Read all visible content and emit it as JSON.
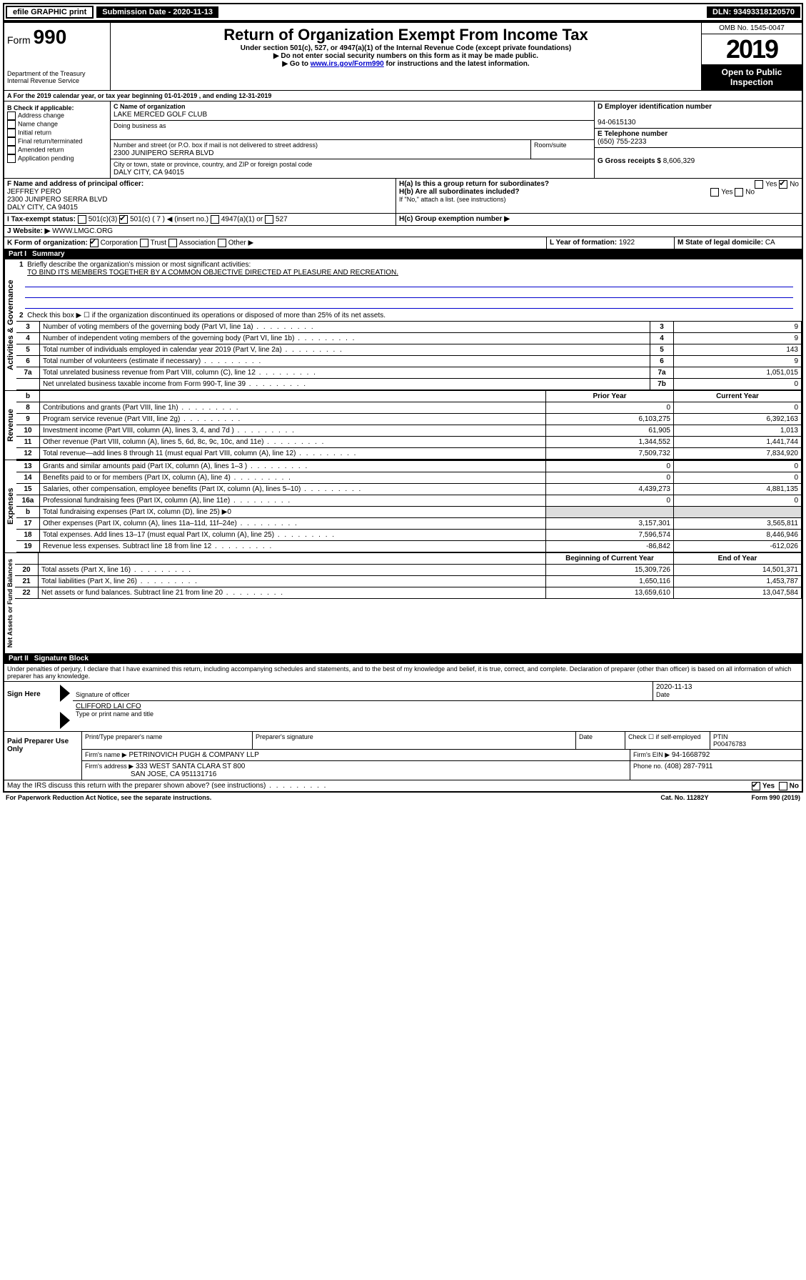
{
  "topbar": {
    "efile": "efile GRAPHIC print",
    "submission_label": "Submission Date - 2020-11-13",
    "dln": "DLN: 93493318120570"
  },
  "header": {
    "form_prefix": "Form",
    "form_number": "990",
    "title": "Return of Organization Exempt From Income Tax",
    "subtitle": "Under section 501(c), 527, or 4947(a)(1) of the Internal Revenue Code (except private foundations)",
    "note1": "▶ Do not enter social security numbers on this form as it may be made public.",
    "note2_pre": "▶ Go to ",
    "note2_link": "www.irs.gov/Form990",
    "note2_post": " for instructions and the latest information.",
    "dept": "Department of the Treasury\nInternal Revenue Service",
    "omb": "OMB No. 1545-0047",
    "year": "2019",
    "inspection": "Open to Public Inspection"
  },
  "line_a": "For the 2019 calendar year, or tax year beginning 01-01-2019    , and ending 12-31-2019",
  "box_b": {
    "title": "B Check if applicable:",
    "items": [
      "Address change",
      "Name change",
      "Initial return",
      "Final return/terminated",
      "Amended return",
      "Application pending"
    ]
  },
  "box_c": {
    "c_label": "C Name of organization",
    "org_name": "LAKE MERCED GOLF CLUB",
    "dba_label": "Doing business as",
    "addr_label": "Number and street (or P.O. box if mail is not delivered to street address)",
    "room_label": "Room/suite",
    "addr": "2300 JUNIPERO SERRA BLVD",
    "city_label": "City or town, state or province, country, and ZIP or foreign postal code",
    "city": "DALY CITY, CA  94015"
  },
  "box_d": {
    "label": "D Employer identification number",
    "value": "94-0615130"
  },
  "box_e": {
    "label": "E Telephone number",
    "value": "(650) 755-2233"
  },
  "box_g": {
    "label": "G Gross receipts $",
    "value": "8,606,329"
  },
  "box_f": {
    "label": "F  Name and address of principal officer:",
    "name": "JEFFREY PERO",
    "addr1": "2300 JUNIPERO SERRA BLVD",
    "addr2": "DALY CITY, CA  94015"
  },
  "box_h": {
    "ha": "H(a)  Is this a group return for subordinates?",
    "hb": "H(b)  Are all subordinates included?",
    "hb_note": "If \"No,\" attach a list. (see instructions)",
    "hc": "H(c)  Group exemption number ▶"
  },
  "box_i": {
    "label": "I  Tax-exempt status:",
    "c3": "501(c)(3)",
    "c_other": "501(c) ( 7 ) ◀ (insert no.)",
    "a1": "4947(a)(1) or",
    "s527": "527"
  },
  "box_j": {
    "label": "J  Website: ▶",
    "value": "WWW.LMGC.ORG"
  },
  "box_k": {
    "label": "K Form of organization:",
    "opts": [
      "Corporation",
      "Trust",
      "Association",
      "Other ▶"
    ]
  },
  "box_l": {
    "label": "L Year of formation:",
    "value": "1922"
  },
  "box_m": {
    "label": "M State of legal domicile:",
    "value": "CA"
  },
  "partI": {
    "num": "Part I",
    "title": "Summary"
  },
  "summary": {
    "line1_label": "Briefly describe the organization's mission or most significant activities:",
    "line1_text": "TO BIND ITS MEMBERS TOGETHER BY A COMMON OBJECTIVE DIRECTED AT PLEASURE AND RECREATION.",
    "line2": "Check this box ▶ ☐  if the organization discontinued its operations or disposed of more than 25% of its net assets.",
    "sections": {
      "gov": "Activities & Governance",
      "rev": "Revenue",
      "exp": "Expenses",
      "net": "Net Assets or Fund Balances"
    },
    "col_headers": {
      "prior": "Prior Year",
      "current": "Current Year",
      "boy": "Beginning of Current Year",
      "eoy": "End of Year"
    },
    "rows_top": [
      {
        "n": "3",
        "d": "Number of voting members of the governing body (Part VI, line 1a)",
        "l": "3",
        "v": "9"
      },
      {
        "n": "4",
        "d": "Number of independent voting members of the governing body (Part VI, line 1b)",
        "l": "4",
        "v": "9"
      },
      {
        "n": "5",
        "d": "Total number of individuals employed in calendar year 2019 (Part V, line 2a)",
        "l": "5",
        "v": "143"
      },
      {
        "n": "6",
        "d": "Total number of volunteers (estimate if necessary)",
        "l": "6",
        "v": "9"
      },
      {
        "n": "7a",
        "d": "Total unrelated business revenue from Part VIII, column (C), line 12",
        "l": "7a",
        "v": "1,051,015"
      },
      {
        "n": "",
        "d": "Net unrelated business taxable income from Form 990-T, line 39",
        "l": "7b",
        "v": "0"
      }
    ],
    "rows_rev": [
      {
        "n": "8",
        "d": "Contributions and grants (Part VIII, line 1h)",
        "p": "0",
        "c": "0"
      },
      {
        "n": "9",
        "d": "Program service revenue (Part VIII, line 2g)",
        "p": "6,103,275",
        "c": "6,392,163"
      },
      {
        "n": "10",
        "d": "Investment income (Part VIII, column (A), lines 3, 4, and 7d )",
        "p": "61,905",
        "c": "1,013"
      },
      {
        "n": "11",
        "d": "Other revenue (Part VIII, column (A), lines 5, 6d, 8c, 9c, 10c, and 11e)",
        "p": "1,344,552",
        "c": "1,441,744"
      },
      {
        "n": "12",
        "d": "Total revenue—add lines 8 through 11 (must equal Part VIII, column (A), line 12)",
        "p": "7,509,732",
        "c": "7,834,920"
      }
    ],
    "rows_exp": [
      {
        "n": "13",
        "d": "Grants and similar amounts paid (Part IX, column (A), lines 1–3 )",
        "p": "0",
        "c": "0"
      },
      {
        "n": "14",
        "d": "Benefits paid to or for members (Part IX, column (A), line 4)",
        "p": "0",
        "c": "0"
      },
      {
        "n": "15",
        "d": "Salaries, other compensation, employee benefits (Part IX, column (A), lines 5–10)",
        "p": "4,439,273",
        "c": "4,881,135"
      },
      {
        "n": "16a",
        "d": "Professional fundraising fees (Part IX, column (A), line 11e)",
        "p": "0",
        "c": "0"
      },
      {
        "n": "b",
        "d": "Total fundraising expenses (Part IX, column (D), line 25) ▶0",
        "p": "",
        "c": "",
        "gray": true
      },
      {
        "n": "17",
        "d": "Other expenses (Part IX, column (A), lines 11a–11d, 11f–24e)",
        "p": "3,157,301",
        "c": "3,565,811"
      },
      {
        "n": "18",
        "d": "Total expenses. Add lines 13–17 (must equal Part IX, column (A), line 25)",
        "p": "7,596,574",
        "c": "8,446,946"
      },
      {
        "n": "19",
        "d": "Revenue less expenses. Subtract line 18 from line 12",
        "p": "-86,842",
        "c": "-612,026"
      }
    ],
    "rows_net": [
      {
        "n": "20",
        "d": "Total assets (Part X, line 16)",
        "p": "15,309,726",
        "c": "14,501,371"
      },
      {
        "n": "21",
        "d": "Total liabilities (Part X, line 26)",
        "p": "1,650,116",
        "c": "1,453,787"
      },
      {
        "n": "22",
        "d": "Net assets or fund balances. Subtract line 21 from line 20",
        "p": "13,659,610",
        "c": "13,047,584"
      }
    ]
  },
  "partII": {
    "num": "Part II",
    "title": "Signature Block"
  },
  "perjury": "Under penalties of perjury, I declare that I have examined this return, including accompanying schedules and statements, and to the best of my knowledge and belief, it is true, correct, and complete. Declaration of preparer (other than officer) is based on all information of which preparer has any knowledge.",
  "sign": {
    "here": "Sign Here",
    "sig_label": "Signature of officer",
    "date_val": "2020-11-13",
    "date_label": "Date",
    "name": "CLIFFORD LAI CFO",
    "name_label": "Type or print name and title"
  },
  "paid": {
    "title": "Paid Preparer Use Only",
    "col1": "Print/Type preparer's name",
    "col2": "Preparer's signature",
    "col3": "Date",
    "chk_label": "Check ☐ if self-employed",
    "ptin_label": "PTIN",
    "ptin": "P00476783",
    "firm_name_label": "Firm's name    ▶",
    "firm_name": "PETRINOVICH PUGH & COMPANY LLP",
    "firm_ein_label": "Firm's EIN ▶",
    "firm_ein": "94-1668792",
    "firm_addr_label": "Firm's address ▶",
    "firm_addr1": "333 WEST SANTA CLARA ST 800",
    "firm_addr2": "SAN JOSE, CA  951131716",
    "phone_label": "Phone no.",
    "phone": "(408) 287-7911"
  },
  "footer": {
    "discuss": "May the IRS discuss this return with the preparer shown above? (see instructions)",
    "paperwork": "For Paperwork Reduction Act Notice, see the separate instructions.",
    "cat": "Cat. No. 11282Y",
    "form": "Form 990 (2019)"
  },
  "yes": "Yes",
  "no": "No"
}
